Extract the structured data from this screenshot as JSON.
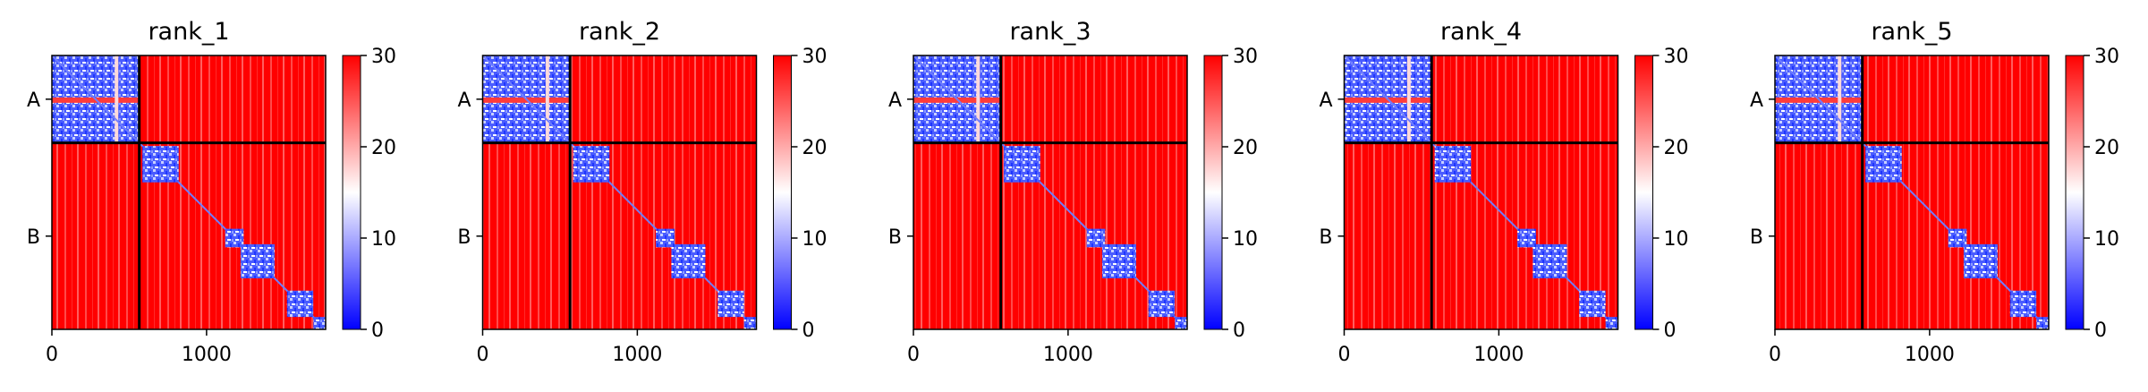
{
  "chart_data": [
    {
      "type": "heatmap",
      "title": "rank_1",
      "xticks": [
        "0",
        "1000"
      ],
      "yticks": [
        "A",
        "B"
      ],
      "xlim": [
        0,
        1770
      ],
      "ylim": [
        1770,
        0
      ],
      "boundary": 565,
      "colorbar": {
        "ticks": [
          "0",
          "10",
          "20",
          "30"
        ],
        "range": [
          0,
          30
        ],
        "cmap": [
          "#0000ff",
          "#ffffff",
          "#ff0000"
        ]
      },
      "blocks": [
        [
          1,
          1
        ],
        [
          1,
          2
        ]
      ]
    },
    {
      "type": "heatmap",
      "title": "rank_2",
      "xticks": [
        "0",
        "1000"
      ],
      "yticks": [
        "A",
        "B"
      ],
      "xlim": [
        0,
        1770
      ],
      "ylim": [
        1770,
        0
      ],
      "boundary": 565,
      "colorbar": {
        "ticks": [
          "0",
          "10",
          "20",
          "30"
        ],
        "range": [
          0,
          30
        ],
        "cmap": [
          "#0000ff",
          "#ffffff",
          "#ff0000"
        ]
      },
      "blocks": [
        [
          1,
          1
        ],
        [
          1,
          2
        ]
      ]
    },
    {
      "type": "heatmap",
      "title": "rank_3",
      "xticks": [
        "0",
        "1000"
      ],
      "yticks": [
        "A",
        "B"
      ],
      "xlim": [
        0,
        1770
      ],
      "ylim": [
        1770,
        0
      ],
      "boundary": 565,
      "colorbar": {
        "ticks": [
          "0",
          "10",
          "20",
          "30"
        ],
        "range": [
          0,
          30
        ],
        "cmap": [
          "#0000ff",
          "#ffffff",
          "#ff0000"
        ]
      },
      "blocks": [
        [
          1,
          1
        ],
        [
          1,
          2
        ]
      ]
    },
    {
      "type": "heatmap",
      "title": "rank_4",
      "xticks": [
        "0",
        "1000"
      ],
      "yticks": [
        "A",
        "B"
      ],
      "xlim": [
        0,
        1770
      ],
      "ylim": [
        1770,
        0
      ],
      "boundary": 565,
      "colorbar": {
        "ticks": [
          "0",
          "10",
          "20",
          "30"
        ],
        "range": [
          0,
          30
        ],
        "cmap": [
          "#0000ff",
          "#ffffff",
          "#ff0000"
        ]
      },
      "blocks": [
        [
          1,
          1
        ],
        [
          1,
          2
        ]
      ]
    },
    {
      "type": "heatmap",
      "title": "rank_5",
      "xticks": [
        "0",
        "1000"
      ],
      "yticks": [
        "A",
        "B"
      ],
      "xlim": [
        0,
        1770
      ],
      "ylim": [
        1770,
        0
      ],
      "boundary": 565,
      "colorbar": {
        "ticks": [
          "0",
          "10",
          "20",
          "30"
        ],
        "range": [
          0,
          30
        ],
        "cmap": [
          "#0000ff",
          "#ffffff",
          "#ff0000"
        ]
      },
      "blocks": [
        [
          1,
          1
        ],
        [
          1,
          2
        ]
      ]
    }
  ]
}
